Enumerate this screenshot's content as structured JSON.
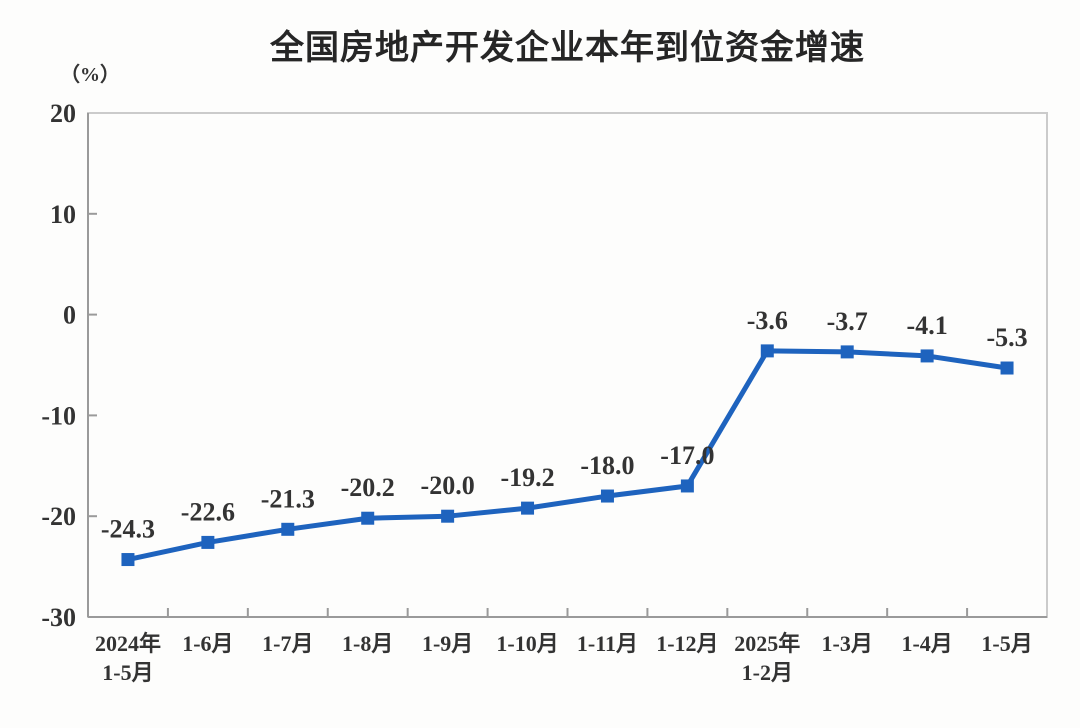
{
  "page": {
    "background": "#fdfdfc"
  },
  "chart_data": {
    "type": "line",
    "title": "全国房地产开发企业本年到位资金增速",
    "unit_label": "（%）",
    "categories": [
      "2024年\n1-5月",
      "1-6月",
      "1-7月",
      "1-8月",
      "1-9月",
      "1-10月",
      "1-11月",
      "1-12月",
      "2025年\n1-2月",
      "1-3月",
      "1-4月",
      "1-5月"
    ],
    "values": [
      -24.3,
      -22.6,
      -21.3,
      -20.2,
      -20.0,
      -19.2,
      -18.0,
      -17.0,
      -3.6,
      -3.7,
      -4.1,
      -5.3
    ],
    "data_labels": [
      "-24.3",
      "-22.6",
      "-21.3",
      "-20.2",
      "-20.0",
      "-19.2",
      "-18.0",
      "-17.0",
      "-3.6",
      "-3.7",
      "-4.1",
      "-5.3"
    ],
    "ylim": [
      -30,
      20
    ],
    "yticks": [
      20,
      10,
      0,
      -10,
      -20,
      -30
    ],
    "grid": false,
    "legend": "none",
    "line_color": "#1E63BE",
    "marker": "square",
    "axis_color": "#9a9a9a",
    "border_color": "#cbcbcb",
    "label_color": "#333333"
  }
}
